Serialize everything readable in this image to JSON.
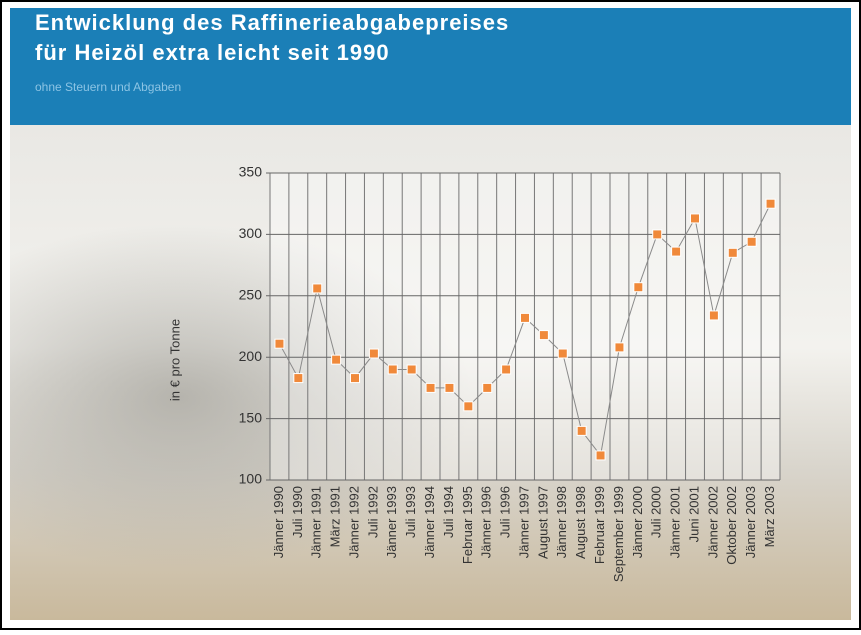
{
  "chart_data": {
    "type": "line",
    "title": [
      "Entwicklung des Raffinerieabgabepreises",
      "für Heizöl extra  leicht seit 1990"
    ],
    "subtitle": "ohne Steuern und Abgaben",
    "y_label": "in € pro Tonne",
    "categories": [
      "Jänner 1990",
      "Juli 1990",
      "Jänner 1991",
      "März 1991",
      "Jänner 1992",
      "Juli 1992",
      "Jänner 1993",
      "Juli 1993",
      "Jänner 1994",
      "Juli 1994",
      "Februar 1995",
      "Jänner 1996",
      "Juli 1996",
      "Jänner 1997",
      "August 1997",
      "Jänner 1998",
      "August 1998",
      "Februar 1999",
      "September 1999",
      "Jänner 2000",
      "Juli 2000",
      "Jänner 2001",
      "Juni 2001",
      "Jänner 2002",
      "Oktober 2002",
      "Jänner 2003",
      "März 2003"
    ],
    "series": [
      {
        "color": "#f0893a",
        "line_color": "#8a8a8a",
        "values": [
          211,
          183,
          256,
          198,
          183,
          203,
          190,
          190,
          175,
          175,
          160,
          175,
          190,
          232,
          218,
          203,
          140,
          120,
          208,
          257,
          300,
          286,
          313,
          234,
          285,
          294,
          325
        ]
      }
    ],
    "ylim": [
      100,
      350
    ],
    "yticks": [
      100,
      150,
      200,
      250,
      300,
      350
    ],
    "grid": true
  }
}
